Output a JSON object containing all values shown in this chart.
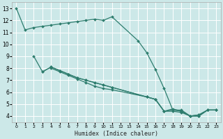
{
  "xlabel": "Humidex (Indice chaleur)",
  "bg_color": "#cce8e8",
  "grid_color": "#ffffff",
  "line_color": "#2e7d6e",
  "xlim": [
    -0.5,
    23.5
  ],
  "ylim": [
    3.5,
    13.5
  ],
  "xticks": [
    0,
    1,
    2,
    3,
    4,
    5,
    6,
    7,
    8,
    9,
    10,
    11,
    12,
    13,
    14,
    15,
    16,
    17,
    18,
    19,
    20,
    21,
    22,
    23
  ],
  "yticks": [
    4,
    5,
    6,
    7,
    8,
    9,
    10,
    11,
    12,
    13
  ],
  "series": [
    {
      "x": [
        0,
        1,
        2,
        3,
        4,
        5,
        6,
        7,
        8,
        9,
        10,
        11,
        14,
        15,
        16,
        17,
        18,
        19,
        20,
        21,
        22,
        23
      ],
      "y": [
        13,
        11.2,
        11.4,
        11.5,
        11.6,
        11.7,
        11.8,
        11.9,
        12.0,
        12.1,
        12.0,
        12.3,
        10.3,
        9.3,
        7.9,
        6.3,
        4.5,
        4.5,
        4.0,
        4.1,
        4.5,
        4.5
      ]
    },
    {
      "x": [
        2,
        3,
        4,
        5,
        6,
        7,
        8,
        9,
        10,
        11,
        15,
        16,
        17,
        18,
        19,
        20,
        21,
        22,
        23
      ],
      "y": [
        9.0,
        7.7,
        8.1,
        7.8,
        7.5,
        7.2,
        7.0,
        6.8,
        6.6,
        6.4,
        5.6,
        5.4,
        4.4,
        4.4,
        4.3,
        4.0,
        4.1,
        4.5,
        4.5
      ]
    },
    {
      "x": [
        3,
        4,
        5,
        6,
        7,
        8,
        9,
        10,
        11,
        15,
        16,
        17,
        18,
        19,
        20,
        21,
        22,
        23
      ],
      "y": [
        7.7,
        8.1,
        7.8,
        7.5,
        7.2,
        7.0,
        6.8,
        6.6,
        6.4,
        5.6,
        5.4,
        4.4,
        4.5,
        4.4,
        4.0,
        4.0,
        4.5,
        4.5
      ]
    },
    {
      "x": [
        4,
        5,
        6,
        7,
        8,
        9,
        10,
        11,
        15,
        16,
        17,
        18,
        19,
        20,
        21,
        22,
        23
      ],
      "y": [
        8.0,
        7.7,
        7.4,
        7.1,
        6.8,
        6.5,
        6.3,
        6.2,
        5.6,
        5.4,
        4.4,
        4.6,
        4.4,
        4.0,
        4.0,
        4.5,
        4.5
      ]
    }
  ]
}
